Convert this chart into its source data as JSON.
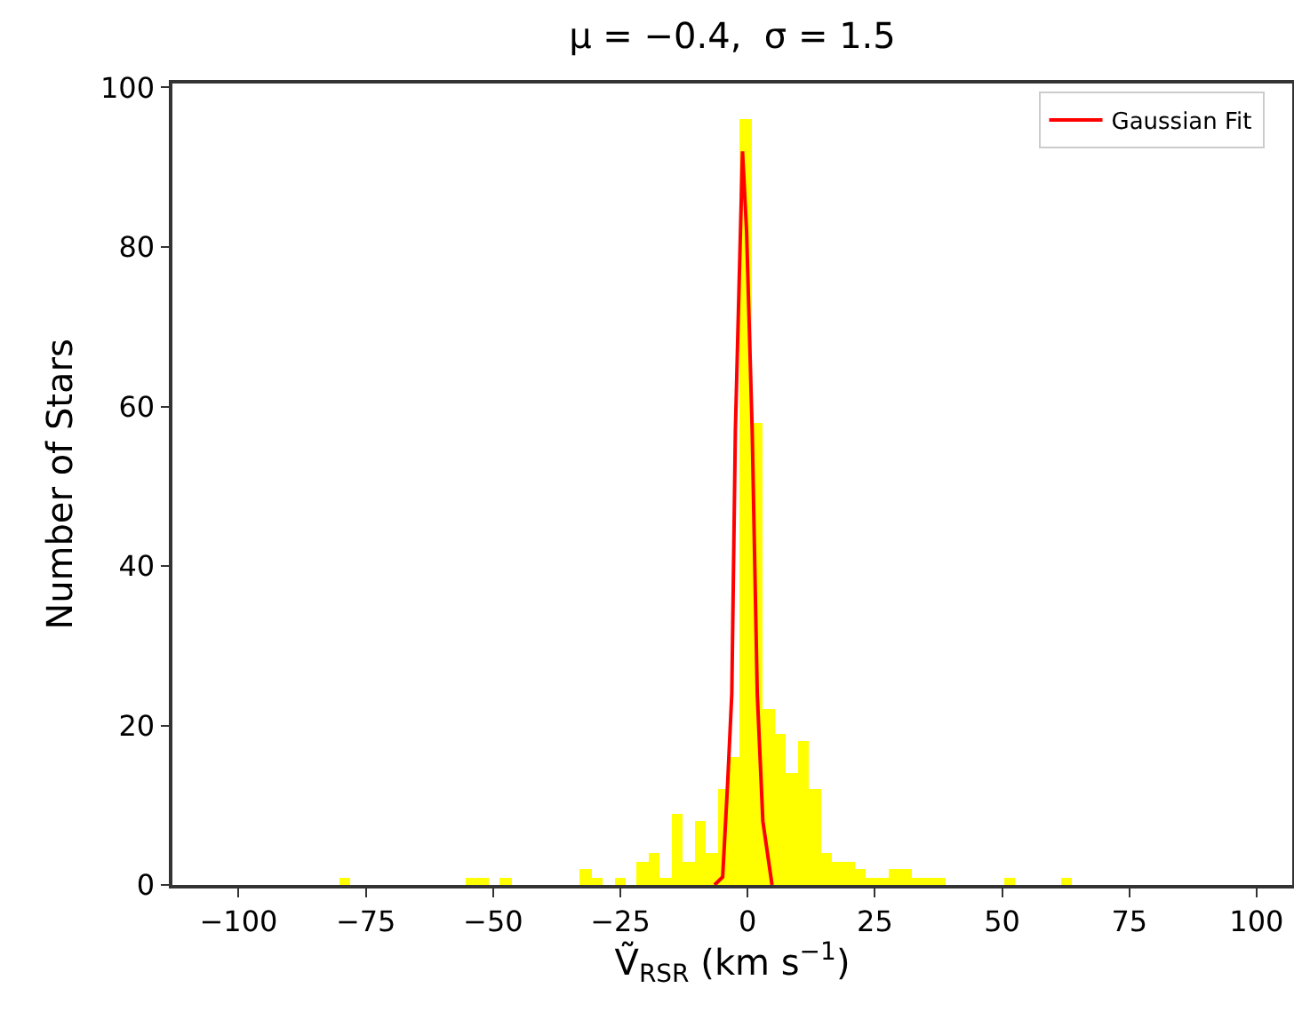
{
  "chart_data": {
    "type": "histogram",
    "title": "μ = −0.4,  σ = 1.5",
    "xlabel": "Ṽ$_{RSR}$ (km s$^{−1}$)",
    "ylabel": "Number of Stars",
    "bins": [
      -80.2,
      -77.95,
      -75.7,
      -73.45,
      -71.2,
      -68.95,
      -66.7,
      -64.45,
      -62.2,
      -59.95,
      -57.7,
      -55.45,
      -53.2,
      -50.95,
      -48.7,
      -46.45,
      -44.2,
      -41.95,
      -39.7,
      -37.45,
      -35.2,
      -32.95,
      -30.7,
      -28.45,
      -26.2,
      -23.95,
      -21.7,
      -19.45,
      -17.2,
      -14.95,
      -12.7,
      -10.45,
      -8.2,
      -5.95,
      -3.7,
      -1.45,
      0.8,
      3.05,
      5.3,
      7.55,
      9.8,
      12.05,
      14.3,
      16.55,
      18.8,
      21.05,
      23.3,
      25.55,
      27.8,
      30.05,
      32.3,
      34.55,
      36.8,
      39.05,
      41.3,
      43.55,
      45.8,
      48.05,
      50.3,
      52.55,
      54.8,
      57.05,
      59.3,
      61.55,
      63.8
    ],
    "series": [
      {
        "type": "histogram",
        "color": "#ffff00",
        "values": [
          1,
          0,
          0,
          0,
          0,
          0,
          0,
          0,
          0,
          0,
          0,
          1,
          1,
          0,
          1,
          0,
          0,
          0,
          0,
          0,
          0,
          2,
          1,
          0,
          1,
          0,
          3,
          4,
          1,
          9,
          3,
          8,
          4,
          12,
          16,
          96,
          58,
          22,
          19,
          14,
          18,
          12,
          4,
          3,
          3,
          2,
          1,
          1,
          2,
          2,
          1,
          1,
          1,
          0,
          0,
          0,
          0,
          0,
          1,
          0,
          0,
          0,
          0,
          1
        ]
      },
      {
        "type": "line",
        "name": "Gaussian Fit",
        "color": "#ff0000",
        "x": [
          -6.5,
          -4.9,
          -3.9,
          -3.1,
          -2.4,
          -1.0,
          -0.2,
          0.9,
          1.9,
          3.0,
          4.8
        ],
        "values": [
          0,
          1,
          13,
          24,
          57,
          92,
          82,
          57,
          24,
          8,
          0
        ]
      }
    ],
    "xlim": [
      -113,
      107
    ],
    "xticks": [
      -100,
      -75,
      -50,
      -25,
      0,
      25,
      50,
      75,
      100
    ],
    "ylim": [
      0,
      100.5
    ],
    "yticks": [
      0,
      20,
      40,
      60,
      80,
      100
    ],
    "grid": false,
    "legend": "top right"
  }
}
